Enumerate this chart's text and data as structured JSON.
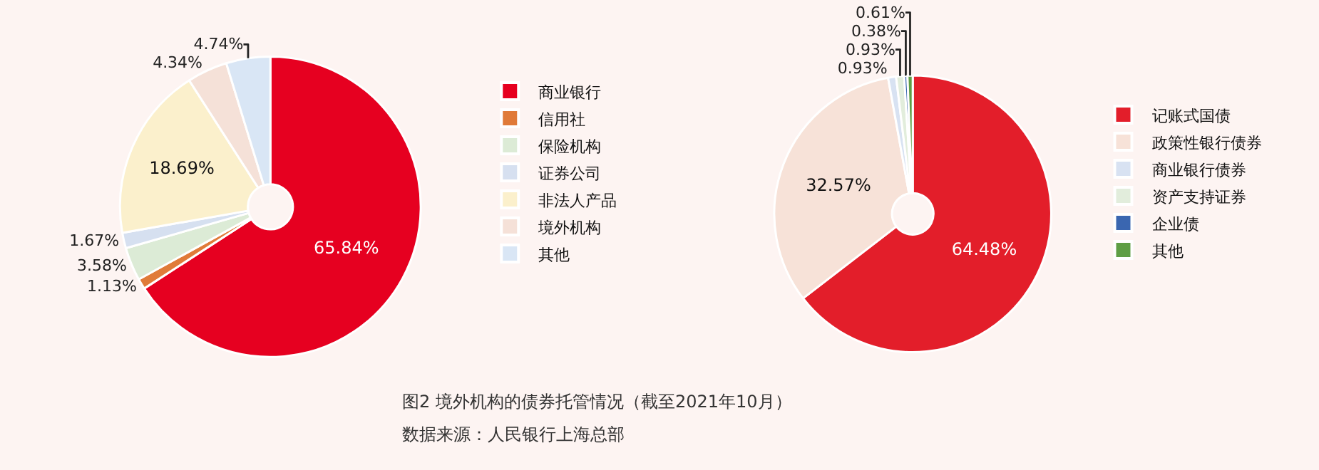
{
  "chart_data": [
    {
      "type": "donut",
      "title": "图2 境外机构的债券托管情况（截至2021年10月）",
      "annotations": [
        "数据来源：人民银行上海总部"
      ],
      "legend": "right",
      "categories": [
        "商业银行",
        "信用社",
        "保险机构",
        "证券公司",
        "非法人产品",
        "境外机构",
        "其他"
      ],
      "values": [
        65.84,
        1.13,
        3.58,
        1.67,
        18.69,
        4.34,
        4.74
      ],
      "value_labels": [
        "65.84%",
        "1.13%",
        "3.58%",
        "1.67%",
        "18.69%",
        "4.34%",
        "4.74%"
      ],
      "colors": [
        "#e60020",
        "#e07b39",
        "#dcebd6",
        "#d6e0f0",
        "#fbf0cc",
        "#f5e1d8",
        "#d9e6f5"
      ]
    },
    {
      "type": "donut",
      "legend": "right",
      "categories": [
        "记账式国债",
        "政策性银行债券",
        "商业银行债券",
        "资产支持证券",
        "企业债",
        "其他"
      ],
      "values": [
        64.48,
        32.57,
        0.93,
        0.93,
        0.38,
        0.61
      ],
      "value_labels": [
        "64.48%",
        "32.57%",
        "0.93%",
        "0.93%",
        "0.38%",
        "0.61%"
      ],
      "colors": [
        "#e31e2a",
        "#f7e2d8",
        "#d8e2f2",
        "#e2eddc",
        "#3a66b0",
        "#5e9e45"
      ]
    }
  ]
}
